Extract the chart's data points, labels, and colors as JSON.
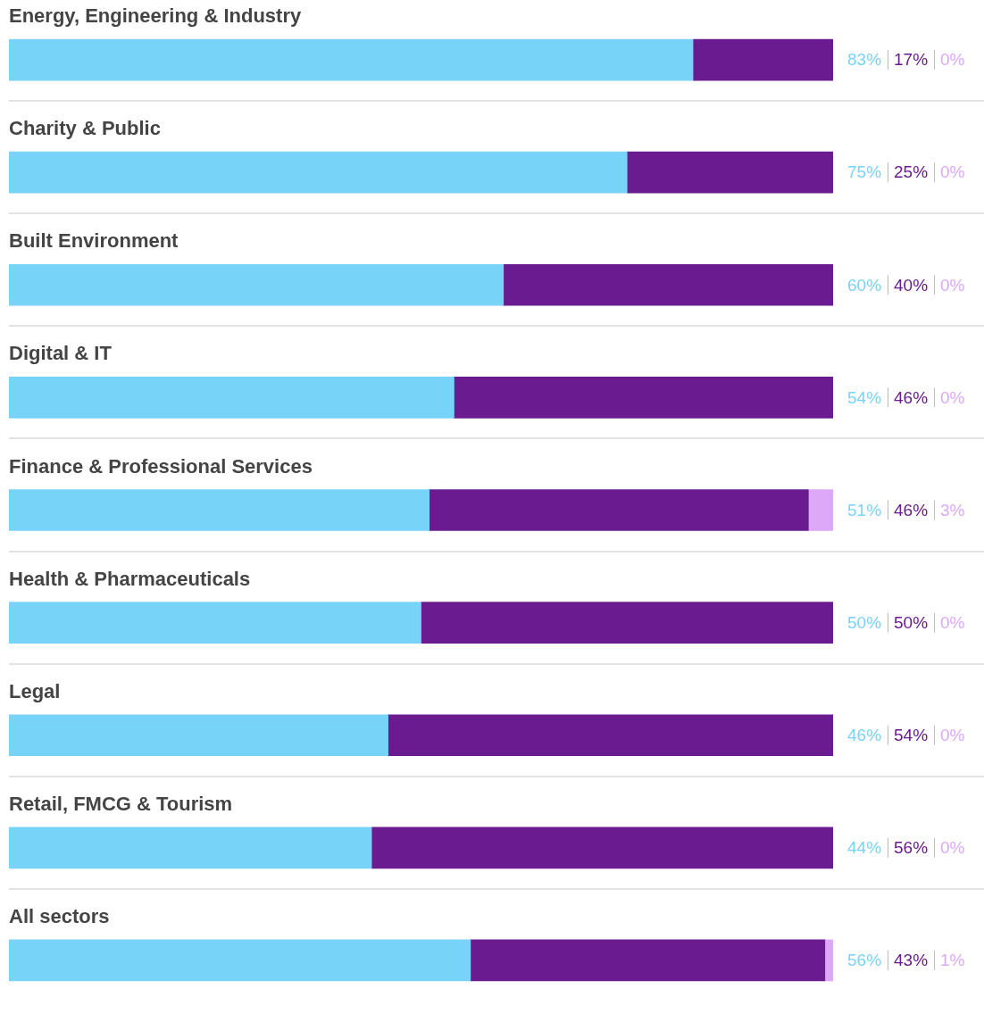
{
  "chart_data": {
    "type": "bar",
    "orientation": "horizontal",
    "stacked": true,
    "categories": [
      "Energy, Engineering & Industry",
      "Charity & Public",
      "Built Environment",
      "Digital & IT",
      "Finance & Professional Services",
      "Health & Pharmaceuticals",
      "Legal",
      "Retail, FMCG & Tourism",
      "All sectors"
    ],
    "xlim": [
      0,
      100
    ],
    "tick_labels": false,
    "legend": false,
    "series": [
      {
        "color": "#78d3f8",
        "values": [
          83,
          75,
          60,
          54,
          51,
          50,
          46,
          44,
          56
        ],
        "value_labels": [
          "83%",
          "75%",
          "60%",
          "54%",
          "51%",
          "50%",
          "46%",
          "44%",
          "56%"
        ]
      },
      {
        "color": "#6a1b8f",
        "values": [
          17,
          25,
          40,
          46,
          46,
          50,
          54,
          56,
          43
        ],
        "value_labels": [
          "17%",
          "25%",
          "40%",
          "46%",
          "46%",
          "50%",
          "54%",
          "56%",
          "43%"
        ]
      },
      {
        "color": "#dca8f7",
        "values": [
          0,
          0,
          0,
          0,
          3,
          0,
          0,
          0,
          1
        ],
        "value_labels": [
          "0%",
          "0%",
          "0%",
          "0%",
          "3%",
          "0%",
          "0%",
          "0%",
          "1%"
        ]
      }
    ]
  }
}
